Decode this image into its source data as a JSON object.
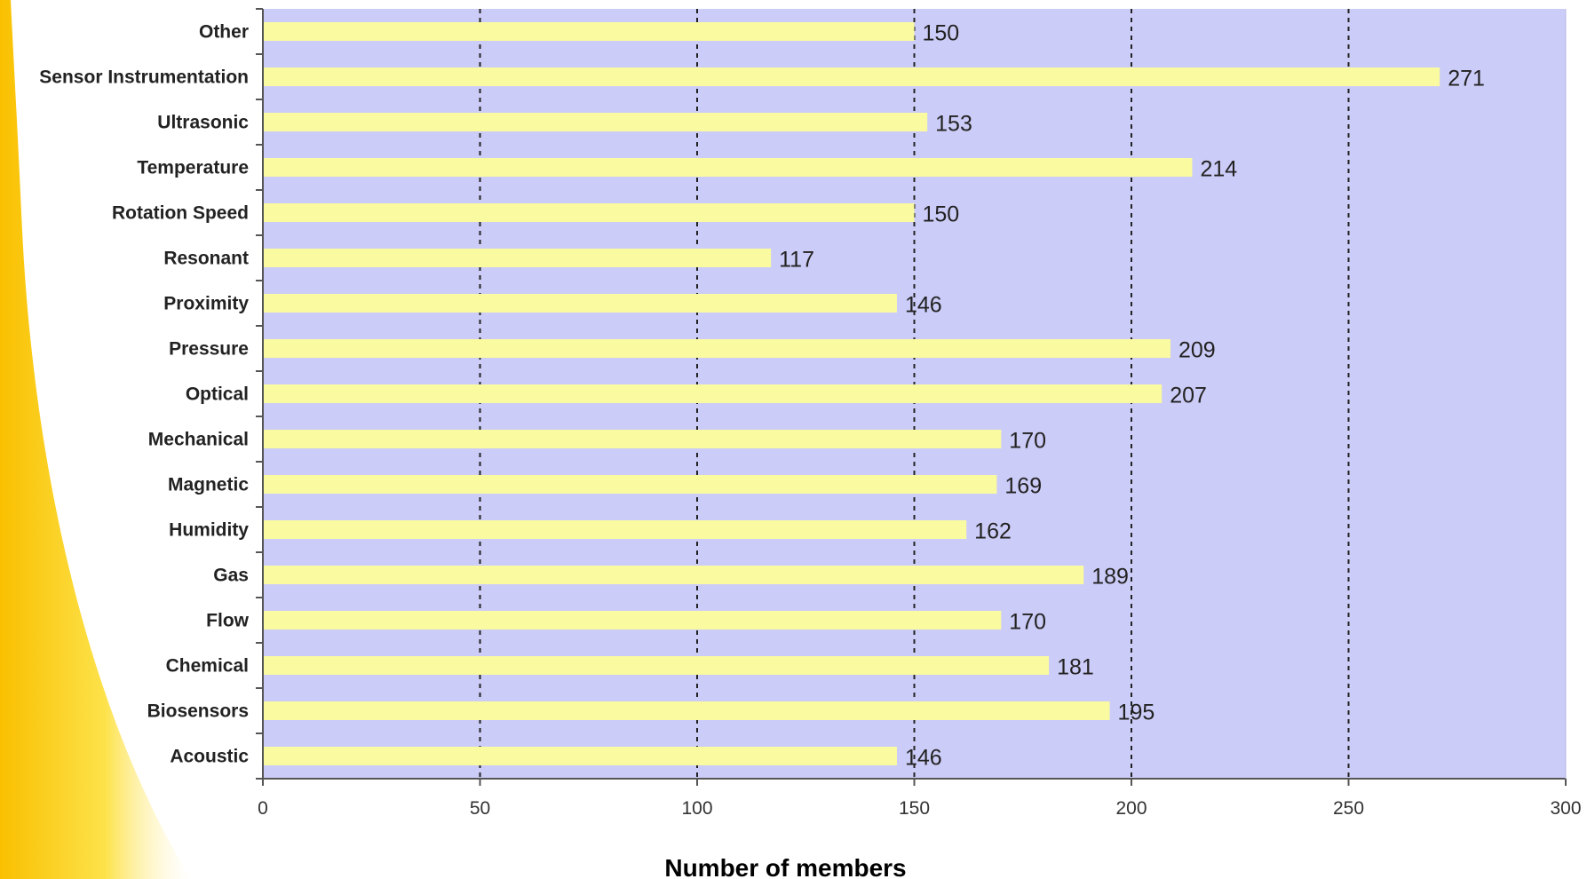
{
  "colors": {
    "plot_background": "#ccccf8",
    "bar_fill": "#fafaa0",
    "gridline": "#222222",
    "axis": "#555555",
    "swoosh_yellow": "#fcd000"
  },
  "chart_data": {
    "type": "bar",
    "orientation": "horizontal",
    "title": "",
    "xlabel": "Number of members",
    "ylabel": "",
    "xlim": [
      0,
      300
    ],
    "x_ticks": [
      "0",
      "50",
      "100",
      "150",
      "200",
      "250",
      "300"
    ],
    "grid": "vertical dashed at 50, 100, 150, 200, 250",
    "categories": [
      "Other",
      "Sensor Instrumentation",
      "Ultrasonic",
      "Temperature",
      "Rotation Speed",
      "Resonant",
      "Proximity",
      "Pressure",
      "Optical",
      "Mechanical",
      "Magnetic",
      "Humidity",
      "Gas",
      "Flow",
      "Chemical",
      "Biosensors",
      "Acoustic"
    ],
    "values": [
      150,
      271,
      153,
      214,
      150,
      117,
      146,
      209,
      207,
      170,
      169,
      162,
      189,
      170,
      181,
      195,
      146
    ],
    "value_labels": [
      "150",
      "271",
      "153",
      "214",
      "150",
      "117",
      "146",
      "209",
      "207",
      "170",
      "169",
      "162",
      "189",
      "170",
      "181",
      "195",
      "146"
    ]
  }
}
